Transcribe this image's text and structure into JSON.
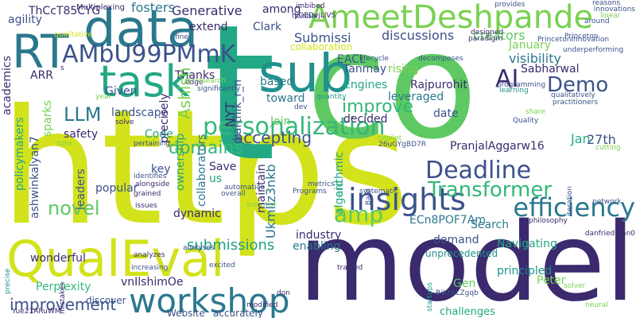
{
  "words": [
    {
      "text": "https",
      "color": "#d2e21b"
    },
    {
      "text": "co",
      "color": "#5ec962"
    },
    {
      "text": "t",
      "color": "#22a884"
    },
    {
      "text": "model",
      "color": "#3b2a6e"
    },
    {
      "text": "AmeetDeshpande",
      "color": "#7ad151"
    },
    {
      "text": "data",
      "color": "#2a788e"
    },
    {
      "text": "task",
      "color": "#22a884"
    },
    {
      "text": "sub",
      "color": "#21918c"
    },
    {
      "text": "QualEval",
      "color": "#d2e21b"
    },
    {
      "text": "workshop",
      "color": "#2a788e"
    },
    {
      "text": "RT",
      "color": "#2a788e"
    },
    {
      "text": "AMbU99PMmK",
      "color": "#3b528b"
    },
    {
      "text": "personalization",
      "color": "#35b779"
    },
    {
      "text": "efficiency",
      "color": "#2a788e"
    },
    {
      "text": "insights",
      "color": "#3b528b"
    },
    {
      "text": "Deadline",
      "color": "#3b528b"
    },
    {
      "text": "Transformer",
      "color": "#35b779"
    },
    {
      "text": "AI",
      "color": "#3b2a6e"
    },
    {
      "text": "Demo",
      "color": "#3b528b"
    },
    {
      "text": "LLM",
      "color": "#2a788e"
    },
    {
      "text": "improvement",
      "color": "#3b528b"
    },
    {
      "text": "amp",
      "color": "#5ec962"
    },
    {
      "text": "domains",
      "color": "#35b779"
    },
    {
      "text": "novel",
      "color": "#5ec962"
    },
    {
      "text": "improve",
      "color": "#35b779"
    },
    {
      "text": "accepting",
      "color": "#3b528b"
    },
    {
      "text": "submissions",
      "color": "#1f9e89"
    },
    {
      "text": "Generative",
      "color": "#3b2a6e"
    },
    {
      "text": "fosters",
      "color": "#2a788e"
    },
    {
      "text": "Submissi",
      "color": "#3b528b"
    },
    {
      "text": "discussions",
      "color": "#3b528b"
    },
    {
      "text": "creators",
      "color": "#5ec962"
    },
    {
      "text": "January",
      "color": "#7ad151"
    },
    {
      "text": "visibility",
      "color": "#2a788e"
    },
    {
      "text": "Sabharwal",
      "color": "#3b2a6e"
    },
    {
      "text": "27th",
      "color": "#3b528b"
    },
    {
      "text": "Jan",
      "color": "#22a884"
    },
    {
      "text": "PranjalAggarw16",
      "color": "#3b2a6e"
    },
    {
      "text": "ECn8POF7Am",
      "color": "#2a788e"
    },
    {
      "text": "Search",
      "color": "#2a788e"
    },
    {
      "text": "Navigating",
      "color": "#22a884"
    },
    {
      "text": "principled",
      "color": "#21918c"
    },
    {
      "text": "Peter",
      "color": "#7ad151"
    },
    {
      "text": "Gen",
      "color": "#5ec962"
    },
    {
      "text": "challenges",
      "color": "#22a884"
    },
    {
      "text": "demand",
      "color": "#3b528b"
    },
    {
      "text": "industry",
      "color": "#3b2a6e"
    },
    {
      "text": "enabling",
      "color": "#2a788e"
    },
    {
      "text": "unprecedented",
      "color": "#21918c"
    },
    {
      "text": "Rajpurohit",
      "color": "#3b2a6e"
    },
    {
      "text": "Tanmay",
      "color": "#3b528b"
    },
    {
      "text": "rising",
      "color": "#7ad151"
    },
    {
      "text": "leveraged",
      "color": "#2a788e"
    },
    {
      "text": "date",
      "color": "#3b528b"
    },
    {
      "text": "decided",
      "color": "#3b2a6e"
    },
    {
      "text": "Engines",
      "color": "#22a884"
    },
    {
      "text": "EACL",
      "color": "#3b528b"
    },
    {
      "text": "based",
      "color": "#2a788e"
    },
    {
      "text": "toward",
      "color": "#2a788e"
    },
    {
      "text": "collaboration",
      "color": "#d2e21b"
    },
    {
      "text": "Clark",
      "color": "#3b528b"
    },
    {
      "text": "among",
      "color": "#3b2a6e"
    },
    {
      "text": "extend",
      "color": "#3b2a6e"
    },
    {
      "text": "Thanks",
      "color": "#3b2a6e"
    },
    {
      "text": "Given",
      "color": "#3b528b"
    },
    {
      "text": "landscape",
      "color": "#3b528b"
    },
    {
      "text": "safety",
      "color": "#3b2a6e"
    },
    {
      "text": "Code",
      "color": "#22a884"
    },
    {
      "text": "key",
      "color": "#3b528b"
    },
    {
      "text": "popular",
      "color": "#3b528b"
    },
    {
      "text": "dynamic",
      "color": "#3b2a6e"
    },
    {
      "text": "wonderful",
      "color": "#3b2a6e"
    },
    {
      "text": "Perplexity",
      "color": "#35b779"
    },
    {
      "text": "vnIlshimOe",
      "color": "#3b2a6e"
    },
    {
      "text": "Website",
      "color": "#3b528b"
    },
    {
      "text": "accurately",
      "color": "#3b528b"
    },
    {
      "text": "discover",
      "color": "#3b528b"
    },
    {
      "text": "Join",
      "color": "#5ec962"
    },
    {
      "text": "Save",
      "color": "#3b2a6e"
    },
    {
      "text": "us",
      "color": "#22a884"
    },
    {
      "text": "Bard",
      "color": "#3b528b"
    },
    {
      "text": "startups",
      "color": "#1f9e89"
    },
    {
      "text": "ownership",
      "color": "#22a884"
    },
    {
      "text": "collaborators",
      "color": "#2a788e"
    },
    {
      "text": "maintain",
      "color": "#3b2a6e"
    },
    {
      "text": "Ukmllz3nkb",
      "color": "#2a788e"
    },
    {
      "text": "aid",
      "color": "#22a884"
    },
    {
      "text": "algorithmic",
      "color": "#22a884"
    },
    {
      "text": "Ashish",
      "color": "#7ad151"
    },
    {
      "text": "NYT",
      "color": "#3b2a6e"
    },
    {
      "text": "karthik_r_n",
      "color": "#3b528b"
    },
    {
      "text": "precisely",
      "color": "#3b2a6e"
    },
    {
      "text": "leaders",
      "color": "#3b528b"
    },
    {
      "text": "ashwinkalyan7",
      "color": "#3b528b"
    },
    {
      "text": "policymakers",
      "color": "#22a884"
    },
    {
      "text": "academics",
      "color": "#3b2a6e"
    },
    {
      "text": "sparks",
      "color": "#7ad151"
    },
    {
      "text": "agility",
      "color": "#3b528b"
    },
    {
      "text": "ARR",
      "color": "#3b2a6e"
    },
    {
      "text": "Multiplexing",
      "color": "#3b2a6e"
    },
    {
      "text": "ThCcT85CYG",
      "color": "#3b2a6e"
    },
    {
      "text": "precise",
      "color": "#21918c"
    },
    {
      "text": "Yue21ARuWM",
      "color": "#3b2a6e"
    },
    {
      "text": "mistakes",
      "color": "#3b2a6e"
    },
    {
      "text": "iteration",
      "color": "#3b528b"
    },
    {
      "text": "predictions",
      "color": "#3b528b"
    },
    {
      "text": "featured",
      "color": "#3b2a6e"
    },
    {
      "text": "imbibed",
      "color": "#3b2a6e"
    },
    {
      "text": "yOEDvjLlVS",
      "color": "#3b2a6e"
    },
    {
      "text": "provides",
      "color": "#3b528b"
    },
    {
      "text": "reasons",
      "color": "#3b528b"
    },
    {
      "text": "innovations",
      "color": "#3b528b"
    },
    {
      "text": "linear",
      "color": "#7ad151"
    },
    {
      "text": "around",
      "color": "#3b528b"
    },
    {
      "text": "Princeton",
      "color": "#3b528b"
    },
    {
      "text": "PrincetonInnovation",
      "color": "#3b528b"
    },
    {
      "text": "underperforming",
      "color": "#3b528b"
    },
    {
      "text": "designed",
      "color": "#3b2a6e"
    },
    {
      "text": "paradigm",
      "color": "#3b2a6e"
    },
    {
      "text": "lifecycle",
      "color": "#3b528b"
    },
    {
      "text": "quantity",
      "color": "#21918c"
    },
    {
      "text": "decomposes",
      "color": "#3b528b"
    },
    {
      "text": "programming",
      "color": "#3b528b"
    },
    {
      "text": "learning",
      "color": "#21918c"
    },
    {
      "text": "qualitatively",
      "color": "#3b528b"
    },
    {
      "text": "practitioners",
      "color": "#3b528b"
    },
    {
      "text": "share",
      "color": "#7ad151"
    },
    {
      "text": "Quality",
      "color": "#3b528b"
    },
    {
      "text": "cutting",
      "color": "#7ad151"
    },
    {
      "text": "network",
      "color": "#3b528b"
    },
    {
      "text": "danfriedman0",
      "color": "#3b2a6e"
    },
    {
      "text": "neural",
      "color": "#7ad151"
    },
    {
      "text": "solver",
      "color": "#7ad151"
    },
    {
      "text": "philosophy",
      "color": "#3b2a6e"
    },
    {
      "text": "BiKhkLZgqb",
      "color": "#3b528b"
    },
    {
      "text": "copilot",
      "color": "#7ad151"
    },
    {
      "text": "26uGYgBD7R",
      "color": "#3b528b"
    },
    {
      "text": "systematic",
      "color": "#3b528b"
    },
    {
      "text": "trained",
      "color": "#3b2a6e"
    },
    {
      "text": "modified",
      "color": "#3b2a6e"
    },
    {
      "text": "don",
      "color": "#3b2a6e"
    },
    {
      "text": "flexible",
      "color": "#3b528b"
    },
    {
      "text": "dev",
      "color": "#3b528b"
    },
    {
      "text": "scientist",
      "color": "#7ad151"
    },
    {
      "text": "excited",
      "color": "#3b528b"
    },
    {
      "text": "overall",
      "color": "#3b528b"
    },
    {
      "text": "Programs",
      "color": "#3b528b"
    },
    {
      "text": "metrics",
      "color": "#3b528b"
    },
    {
      "text": "automatica",
      "color": "#3b528b"
    },
    {
      "text": "increasing",
      "color": "#3b528b"
    },
    {
      "text": "analyses",
      "color": "#3b528b"
    },
    {
      "text": "analyzes",
      "color": "#3b2a6e"
    },
    {
      "text": "issues",
      "color": "#3b2a6e"
    },
    {
      "text": "grained",
      "color": "#3b2a6e"
    },
    {
      "text": "alongside",
      "color": "#3b2a6e"
    },
    {
      "text": "identifies",
      "color": "#3b528b"
    },
    {
      "text": "pertaining",
      "color": "#3b528b"
    },
    {
      "text": "tons",
      "color": "#7ad151"
    },
    {
      "text": "solve",
      "color": "#3b2a6e"
    },
    {
      "text": "year",
      "color": "#7ad151"
    },
    {
      "text": "research",
      "color": "#7ad151"
    },
    {
      "text": "significantly",
      "color": "#3b528b"
    },
    {
      "text": "edge",
      "color": "#3b2a6e"
    },
    {
      "text": "fine",
      "color": "#3b528b"
    },
    {
      "text": "s",
      "color": "#3b2a6e"
    },
    {
      "text": "qualitative",
      "color": "#d2e21b"
    }
  ]
}
